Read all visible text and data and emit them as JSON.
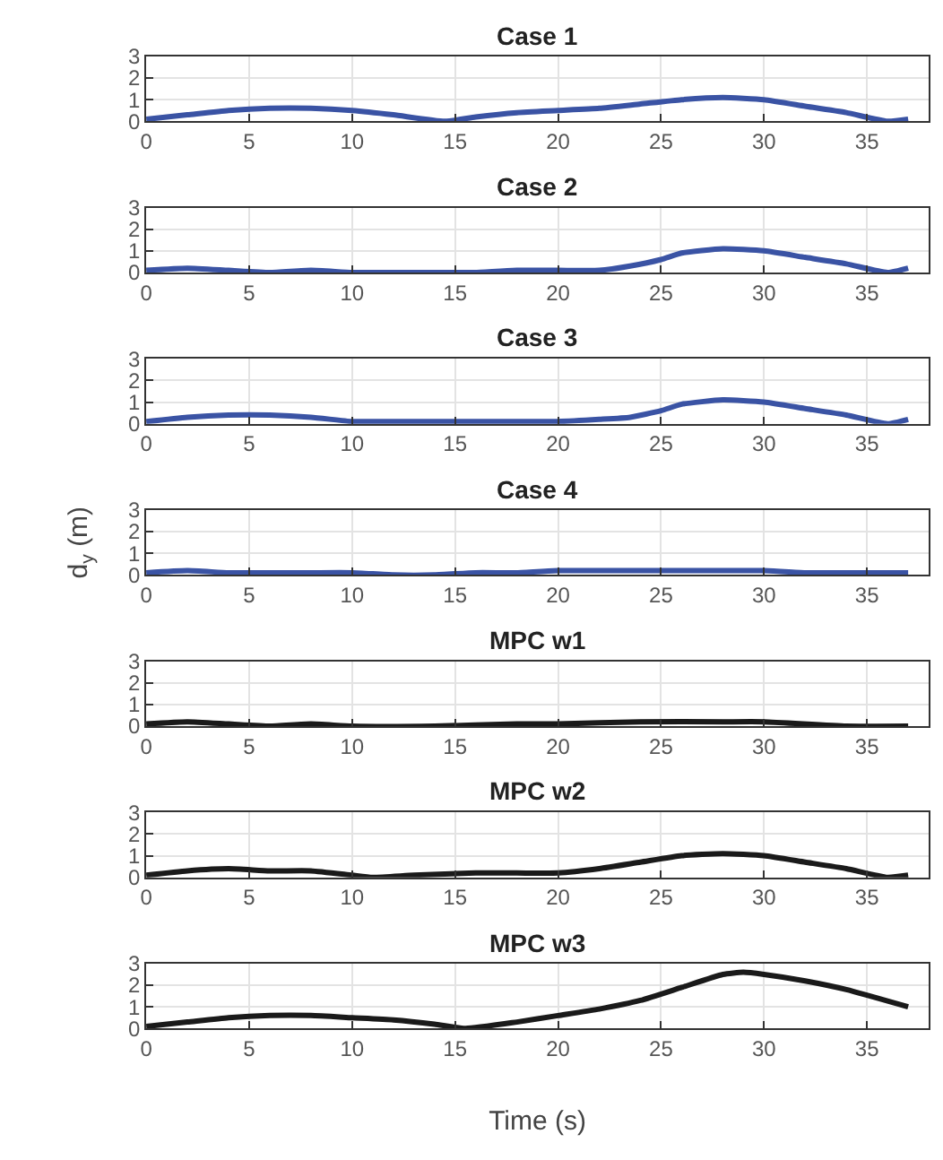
{
  "chart_data": [
    {
      "type": "line",
      "title": "Case 1",
      "xlim": [
        0,
        38
      ],
      "ylim": [
        0,
        3
      ],
      "xticks": [
        0,
        5,
        10,
        15,
        20,
        25,
        30,
        35
      ],
      "yticks": [
        0,
        1,
        2,
        3
      ],
      "grid": true,
      "series": [
        {
          "color": "#3a53a4",
          "x": [
            0,
            2,
            4,
            6,
            8,
            10,
            12,
            14.5,
            16,
            18,
            20,
            22,
            24,
            26,
            28,
            30,
            32,
            34,
            36,
            37
          ],
          "values": [
            0.1,
            0.3,
            0.5,
            0.6,
            0.6,
            0.5,
            0.3,
            0,
            0.2,
            0.4,
            0.5,
            0.6,
            0.8,
            1,
            1.1,
            1,
            0.7,
            0.4,
            0,
            0.1
          ]
        }
      ]
    },
    {
      "type": "line",
      "title": "Case 2",
      "xlim": [
        0,
        38
      ],
      "ylim": [
        0,
        3
      ],
      "xticks": [
        0,
        5,
        10,
        15,
        20,
        25,
        30,
        35
      ],
      "yticks": [
        0,
        1,
        2,
        3
      ],
      "grid": true,
      "series": [
        {
          "color": "#3a53a4",
          "x": [
            0,
            2,
            4,
            6,
            8,
            10,
            12,
            14,
            16,
            18,
            20,
            22,
            23.5,
            25,
            26,
            28,
            30,
            32,
            34,
            36,
            37
          ],
          "values": [
            0.1,
            0.2,
            0.1,
            0,
            0.1,
            0,
            0,
            0,
            0,
            0.1,
            0.1,
            0.1,
            0.3,
            0.6,
            0.9,
            1.1,
            1,
            0.7,
            0.4,
            0,
            0.2
          ]
        }
      ]
    },
    {
      "type": "line",
      "title": "Case 3",
      "xlim": [
        0,
        38
      ],
      "ylim": [
        0,
        3
      ],
      "xticks": [
        0,
        5,
        10,
        15,
        20,
        25,
        30,
        35
      ],
      "yticks": [
        0,
        1,
        2,
        3
      ],
      "grid": true,
      "series": [
        {
          "color": "#3a53a4",
          "x": [
            0,
            2,
            4,
            6,
            8,
            10,
            11,
            13,
            16,
            18,
            20,
            22,
            23.5,
            25,
            26,
            28,
            30,
            32,
            34,
            36,
            37
          ],
          "values": [
            0.1,
            0.3,
            0.4,
            0.4,
            0.3,
            0.1,
            0.1,
            0.1,
            0.1,
            0.1,
            0.1,
            0.2,
            0.3,
            0.6,
            0.9,
            1.1,
            1,
            0.7,
            0.4,
            0,
            0.2
          ]
        }
      ]
    },
    {
      "type": "line",
      "title": "Case 4",
      "ylabel": "d$_{y}$ (m)",
      "xlim": [
        0,
        38
      ],
      "ylim": [
        0,
        3
      ],
      "xticks": [
        0,
        5,
        10,
        15,
        20,
        25,
        30,
        35
      ],
      "yticks": [
        0,
        1,
        2,
        3
      ],
      "grid": true,
      "series": [
        {
          "color": "#3a53a4",
          "x": [
            0,
            2,
            4,
            6,
            8,
            10,
            12,
            14,
            16,
            18,
            20,
            22,
            24,
            26,
            28,
            30,
            32,
            34,
            37
          ],
          "values": [
            0.1,
            0.2,
            0.1,
            0.1,
            0.1,
            0.1,
            0,
            0,
            0.1,
            0.1,
            0.2,
            0.2,
            0.2,
            0.2,
            0.2,
            0.2,
            0.1,
            0.1,
            0.1
          ]
        }
      ]
    },
    {
      "type": "line",
      "title": "MPC w1",
      "xlim": [
        0,
        38
      ],
      "ylim": [
        0,
        3
      ],
      "xticks": [
        0,
        5,
        10,
        15,
        20,
        25,
        30,
        35
      ],
      "yticks": [
        0,
        1,
        2,
        3
      ],
      "grid": true,
      "series": [
        {
          "color": "#1a1a1a",
          "x": [
            0,
            2,
            4,
            6,
            8,
            10,
            14,
            18,
            20,
            24,
            28,
            30,
            34,
            37
          ],
          "values": [
            0.1,
            0.2,
            0.1,
            0,
            0.1,
            0,
            0,
            0.1,
            0.1,
            0.2,
            0.2,
            0.2,
            0,
            0
          ]
        }
      ]
    },
    {
      "type": "line",
      "title": "MPC w2",
      "xlim": [
        0,
        38
      ],
      "ylim": [
        0,
        3
      ],
      "xticks": [
        0,
        5,
        10,
        15,
        20,
        25,
        30,
        35
      ],
      "yticks": [
        0,
        1,
        2,
        3
      ],
      "grid": true,
      "series": [
        {
          "color": "#1a1a1a",
          "x": [
            0,
            2,
            4,
            6,
            8,
            10,
            11,
            13,
            16,
            18,
            20,
            22,
            24,
            26,
            28,
            30,
            32,
            34,
            36,
            37
          ],
          "values": [
            0.1,
            0.3,
            0.4,
            0.3,
            0.3,
            0.1,
            0,
            0.1,
            0.2,
            0.2,
            0.2,
            0.4,
            0.7,
            1,
            1.1,
            1,
            0.7,
            0.4,
            0,
            0.1
          ]
        }
      ]
    },
    {
      "type": "line",
      "title": "MPC w3",
      "xlabel": "Time (s)",
      "xlim": [
        0,
        38
      ],
      "ylim": [
        0,
        3
      ],
      "xticks": [
        0,
        5,
        10,
        15,
        20,
        25,
        30,
        35
      ],
      "yticks": [
        0,
        1,
        2,
        3
      ],
      "grid": true,
      "series": [
        {
          "color": "#1a1a1a",
          "x": [
            0,
            2,
            4,
            6,
            8,
            10,
            12,
            14,
            15.5,
            18,
            20,
            22,
            24,
            26,
            28,
            29,
            30,
            32,
            34,
            37
          ],
          "values": [
            0.1,
            0.3,
            0.5,
            0.6,
            0.6,
            0.5,
            0.4,
            0.2,
            0,
            0.3,
            0.6,
            0.9,
            1.3,
            1.9,
            2.5,
            2.6,
            2.5,
            2.2,
            1.8,
            1
          ]
        }
      ]
    }
  ]
}
